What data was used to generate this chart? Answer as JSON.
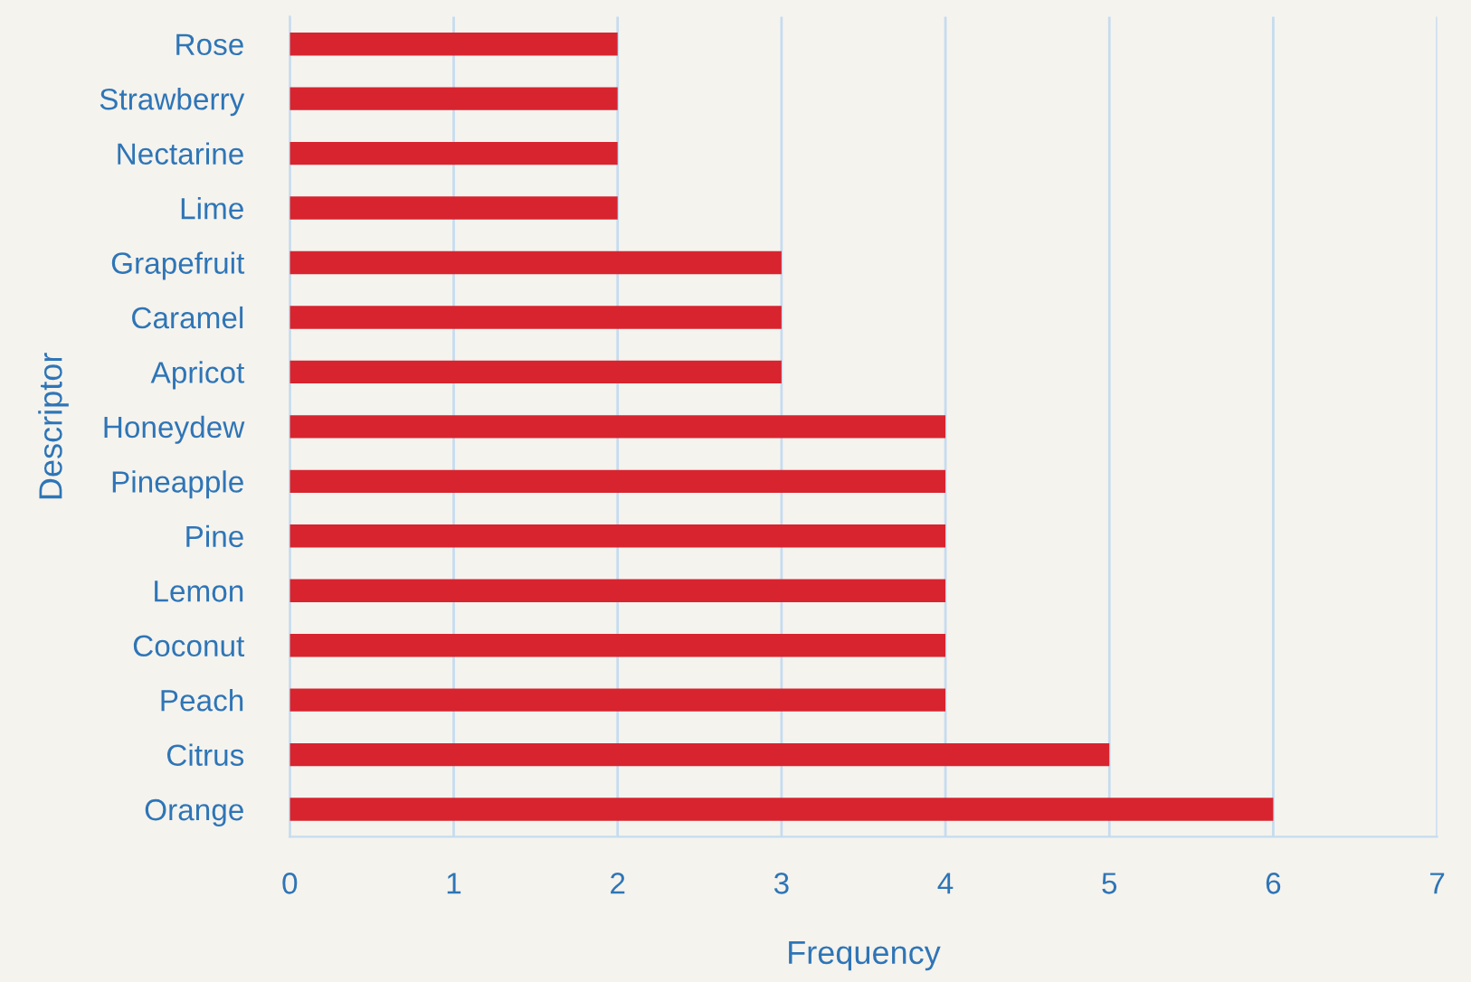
{
  "chart_data": {
    "type": "bar",
    "orientation": "horizontal",
    "xlabel": "Frequency",
    "ylabel": "Descriptor",
    "categories": [
      "Rose",
      "Strawberry",
      "Nectarine",
      "Lime",
      "Grapefruit",
      "Caramel",
      "Apricot",
      "Honeydew",
      "Pineapple",
      "Pine",
      "Lemon",
      "Coconut",
      "Peach",
      "Citrus",
      "Orange"
    ],
    "values": [
      2,
      2,
      2,
      2,
      3,
      3,
      3,
      4,
      4,
      4,
      4,
      4,
      4,
      5,
      6
    ],
    "color": "#d7242f",
    "xlim": [
      0,
      7
    ],
    "xticks": [
      0,
      1,
      2,
      3,
      4,
      5,
      6,
      7
    ],
    "grid": "x",
    "legend": false
  }
}
